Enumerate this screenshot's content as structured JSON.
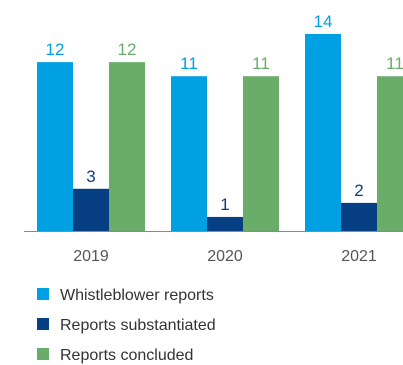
{
  "chart_data": {
    "type": "bar",
    "categories": [
      "2019",
      "2020",
      "2021"
    ],
    "series": [
      {
        "name": "Whistleblower reports",
        "values": [
          12,
          11,
          14
        ],
        "color": "#00a0e3",
        "label_color": "#00a0e3"
      },
      {
        "name": "Reports substantiated",
        "values": [
          3,
          1,
          2
        ],
        "color": "#073f85",
        "label_color": "#073f85"
      },
      {
        "name": "Reports concluded",
        "values": [
          12,
          11,
          11
        ],
        "color": "#6aad6a",
        "label_color": "#6aad6a"
      }
    ],
    "ylim": [
      0,
      14
    ],
    "grid": false,
    "legend_position": "bottom-left"
  }
}
